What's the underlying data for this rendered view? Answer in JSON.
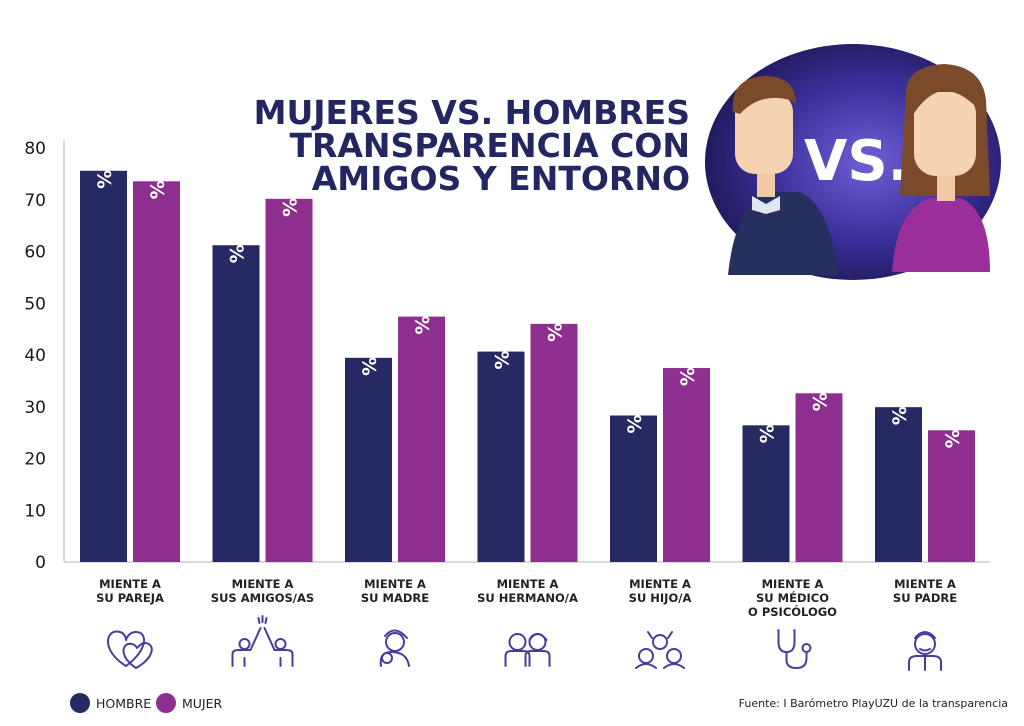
{
  "title_lines": [
    "MUJERES VS. HOMBRES",
    "TRANSPARENCIA CON",
    "AMIGOS Y ENTORNO"
  ],
  "vs_label": "VS.",
  "source": "Fuente: I Barómetro PlayUZU de la transparencia",
  "colors": {
    "hombre": "#272a62",
    "mujer": "#8e2e8e",
    "title": "#232660",
    "icon": "#4b3ba1"
  },
  "chart_data": {
    "type": "bar",
    "categories": [
      [
        "MIENTE A",
        "SU PAREJA"
      ],
      [
        "MIENTE A",
        "SUS AMIGOS/AS"
      ],
      [
        "MIENTE A",
        "SU  MADRE"
      ],
      [
        "MIENTE A",
        "SU HERMANO/A"
      ],
      [
        "MIENTE A",
        "SU HIJO/A"
      ],
      [
        "MIENTE A",
        "SU MÉDICO",
        "O PSICÓLOGO"
      ],
      [
        "MIENTE A",
        "SU  PADRE"
      ]
    ],
    "category_icons": [
      "hearts-icon",
      "high-five-icon",
      "mother-child-icon",
      "siblings-icon",
      "children-icon",
      "stethoscope-icon",
      "father-icon"
    ],
    "series": [
      {
        "name": "HOMBRE",
        "values": [
          75.6,
          61.21,
          39.46,
          40.66,
          28.31,
          26.41,
          29.92
        ],
        "labels": [
          "75,60%",
          "61,21%",
          "39,46%",
          "40,66%",
          "28,31%",
          "26,41%",
          "29,92%"
        ]
      },
      {
        "name": "MUJER",
        "values": [
          73.56,
          70.18,
          47.42,
          46.02,
          37.48,
          32.6,
          25.45
        ],
        "labels": [
          "73,56%",
          "70,18%",
          "47,42%",
          "46,02%",
          "37,48%",
          "32,60%",
          "25,45%"
        ]
      }
    ],
    "yticks": [
      "0",
      "10",
      "20",
      "30",
      "40",
      "50",
      "60",
      "70",
      "80"
    ],
    "ylim": [
      0,
      80
    ],
    "legend_position": "bottom-left",
    "grid": false
  }
}
